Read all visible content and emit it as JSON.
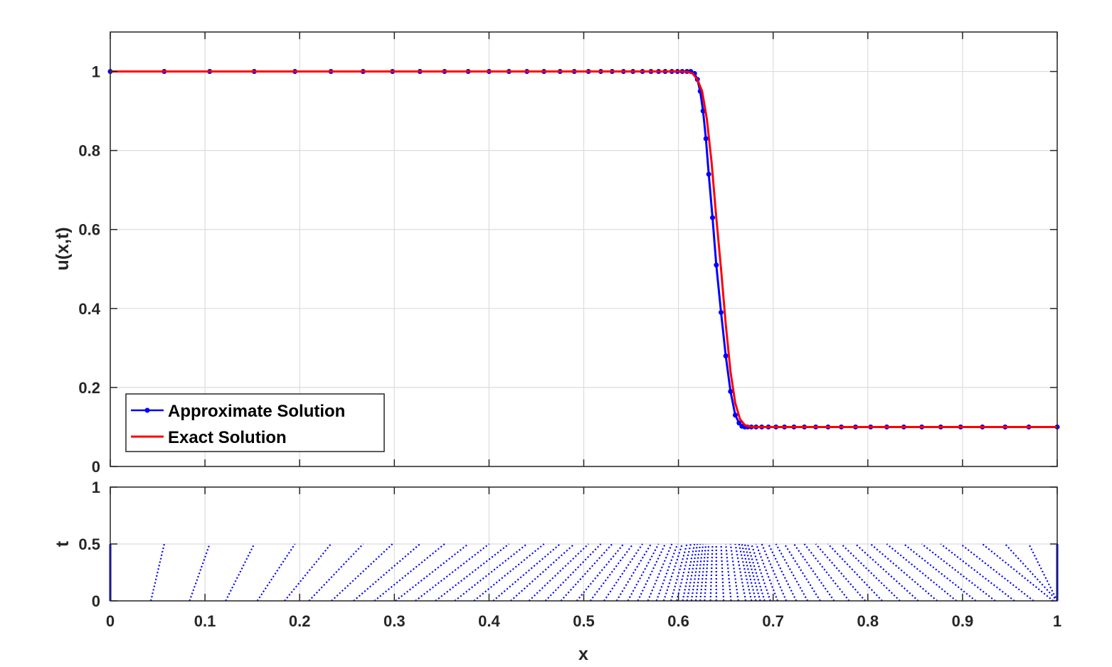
{
  "chart_data": [
    {
      "type": "line",
      "xlabel": "",
      "ylabel": "u(x,t)",
      "xlim": [
        0,
        1
      ],
      "ylim": [
        0,
        1.1
      ],
      "xticks": [
        0,
        0.1,
        0.2,
        0.3,
        0.4,
        0.5,
        0.6,
        0.7,
        0.8,
        0.9,
        1
      ],
      "yticks": [
        "0",
        "0.2",
        "0.4",
        "0.6",
        "0.8",
        "1"
      ],
      "grid": true,
      "legend_position": "bottom-left",
      "series": [
        {
          "name": "Approximate Solution",
          "color": "#0000ff",
          "marker": "dot",
          "x": [
            0,
            0.057,
            0.105,
            0.152,
            0.195,
            0.233,
            0.267,
            0.298,
            0.327,
            0.353,
            0.378,
            0.4,
            0.421,
            0.44,
            0.458,
            0.475,
            0.49,
            0.505,
            0.518,
            0.53,
            0.542,
            0.552,
            0.562,
            0.571,
            0.579,
            0.586,
            0.593,
            0.599,
            0.604,
            0.609,
            0.613,
            0.617,
            0.62,
            0.623,
            0.626,
            0.629,
            0.632,
            0.636,
            0.64,
            0.645,
            0.65,
            0.655,
            0.66,
            0.664,
            0.667,
            0.67,
            0.673,
            0.677,
            0.682,
            0.688,
            0.695,
            0.703,
            0.712,
            0.722,
            0.733,
            0.745,
            0.758,
            0.772,
            0.787,
            0.803,
            0.82,
            0.838,
            0.857,
            0.877,
            0.898,
            0.921,
            0.945,
            0.97,
            1.0
          ],
          "y": [
            1.0,
            1.0,
            1.0,
            1.0,
            1.0,
            1.0,
            1.0,
            1.0,
            1.0,
            1.0,
            1.0,
            1.0,
            1.0,
            1.0,
            1.0,
            1.0,
            1.0,
            1.0,
            1.0,
            1.0,
            1.0,
            1.0,
            1.0,
            1.0,
            1.0,
            1.0,
            1.0,
            1.0,
            1.0,
            1.0,
            1.0,
            0.995,
            0.98,
            0.95,
            0.9,
            0.83,
            0.74,
            0.63,
            0.51,
            0.39,
            0.28,
            0.19,
            0.13,
            0.11,
            0.102,
            0.1,
            0.1,
            0.1,
            0.1,
            0.1,
            0.1,
            0.1,
            0.1,
            0.1,
            0.1,
            0.1,
            0.1,
            0.1,
            0.1,
            0.1,
            0.1,
            0.1,
            0.1,
            0.1,
            0.1,
            0.1,
            0.1,
            0.1,
            0.1
          ]
        },
        {
          "name": "Exact Solution",
          "color": "#ff0000",
          "marker": "none",
          "x": [
            0,
            0.6,
            0.61,
            0.615,
            0.62,
            0.625,
            0.63,
            0.635,
            0.64,
            0.645,
            0.65,
            0.655,
            0.66,
            0.665,
            0.67,
            0.675,
            0.68,
            0.69,
            1.0
          ],
          "y": [
            1.0,
            1.0,
            0.999,
            0.995,
            0.98,
            0.95,
            0.88,
            0.77,
            0.63,
            0.5,
            0.36,
            0.24,
            0.16,
            0.12,
            0.105,
            0.101,
            0.1,
            0.1,
            0.1
          ]
        }
      ]
    },
    {
      "type": "line",
      "xlabel": "x",
      "ylabel": "t",
      "xlim": [
        0,
        1
      ],
      "ylim": [
        0,
        1
      ],
      "xticks": [
        "0",
        "0.1",
        "0.2",
        "0.3",
        "0.4",
        "0.5",
        "0.6",
        "0.7",
        "0.8",
        "0.9",
        "1"
      ],
      "yticks": [
        "0",
        "0.5",
        "1"
      ],
      "grid": true,
      "color": "#0000ff",
      "t_final": 0.5,
      "characteristics": "node trajectories x(t) from t = 0 to t = 0.5, nodes converging toward x = 0.64 as t increases"
    }
  ]
}
